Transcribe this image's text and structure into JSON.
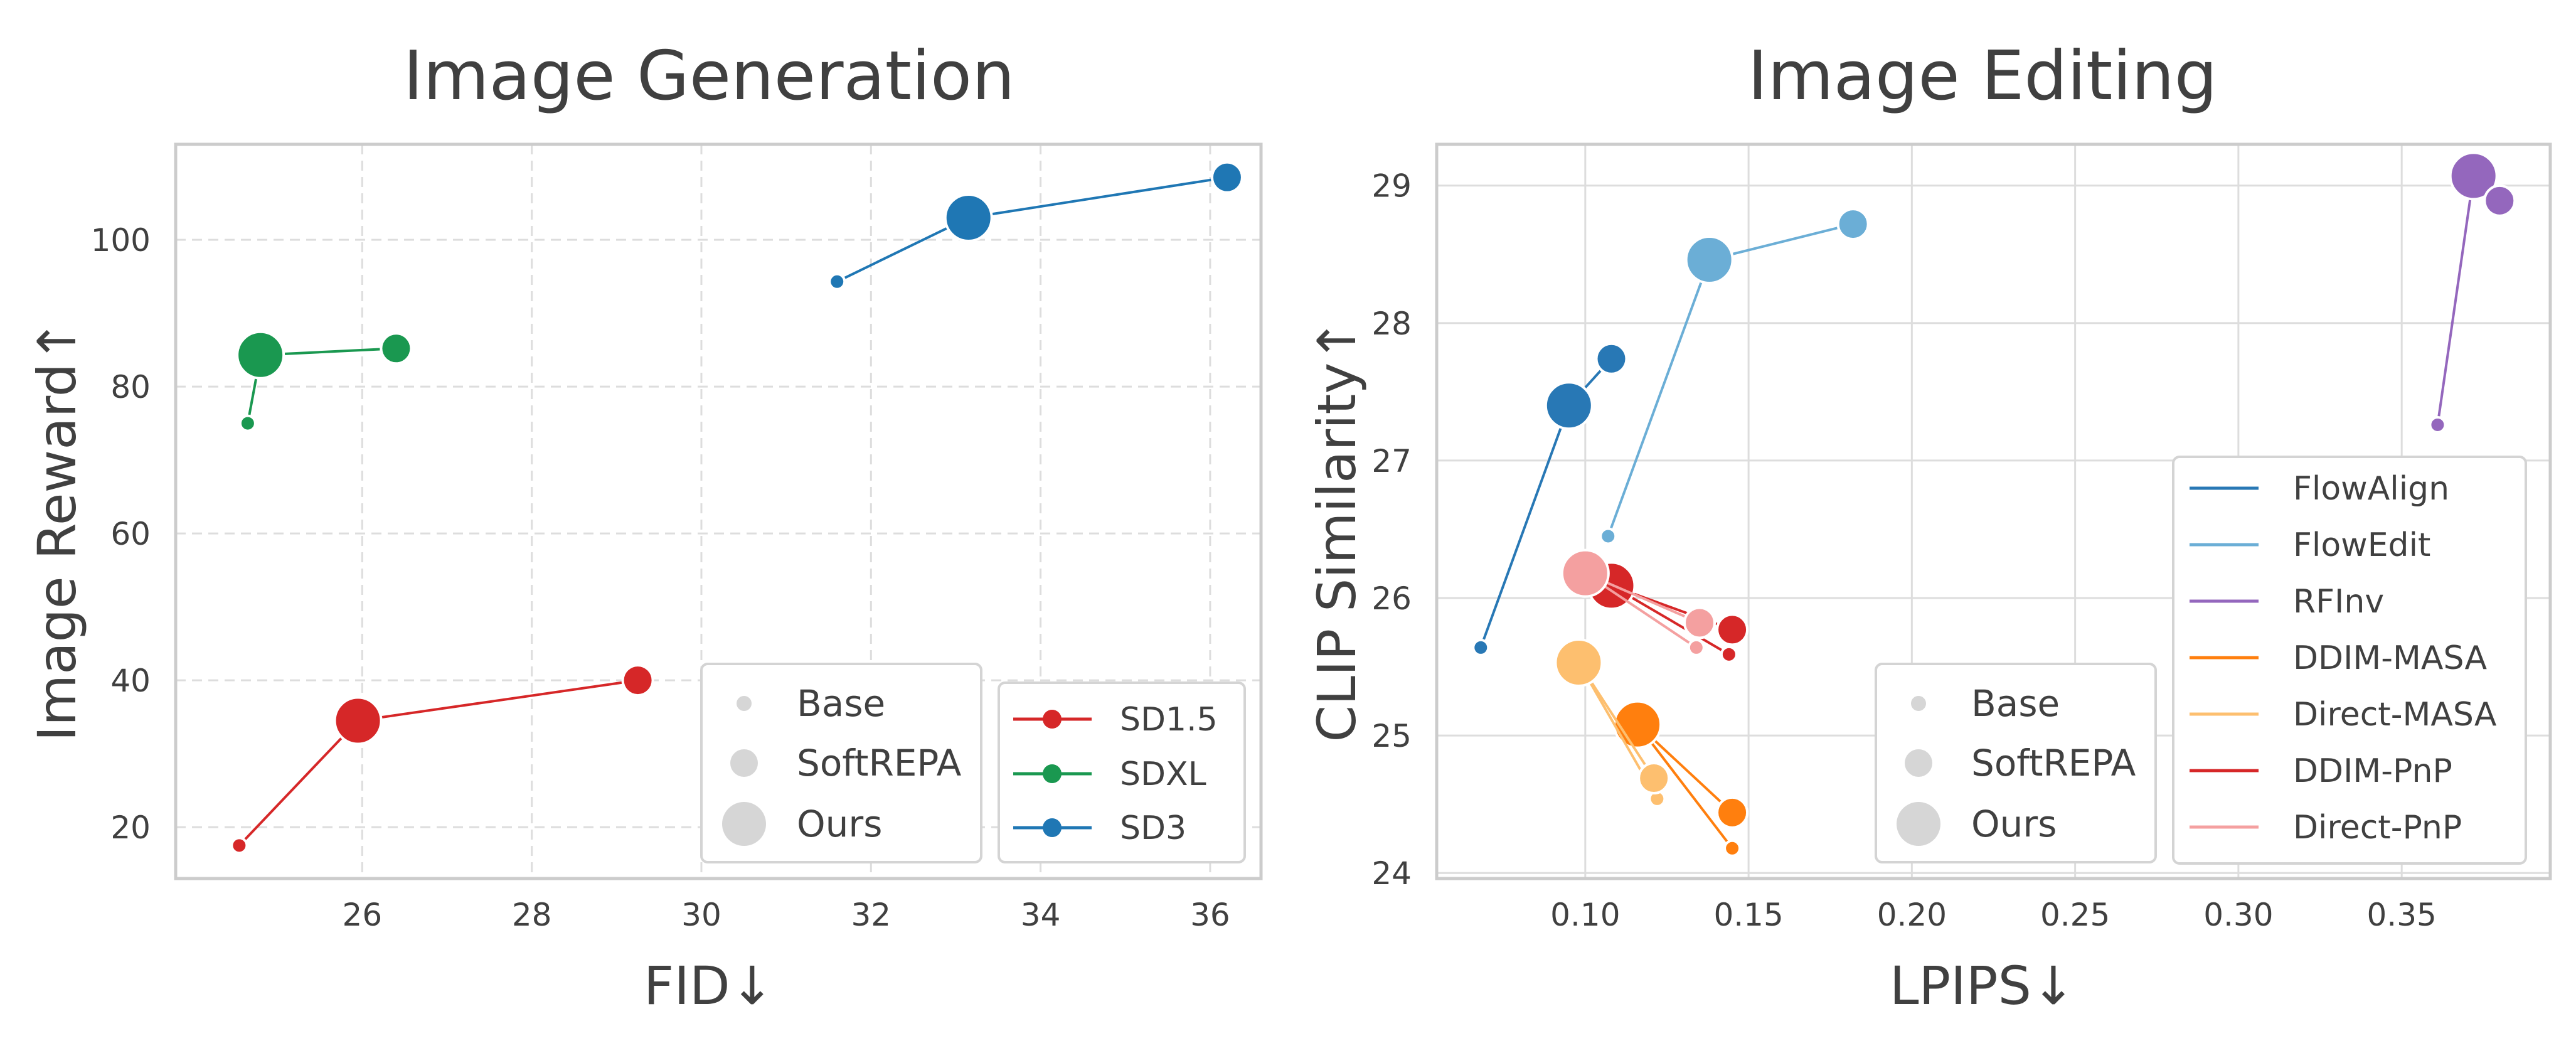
{
  "chart_data": [
    {
      "type": "scatter",
      "title": "Image Generation",
      "xlabel": "FID↓",
      "ylabel": "Image Reward↑",
      "xlim": [
        23.8,
        36.6
      ],
      "ylim": [
        13,
        113
      ],
      "xticks": [
        26,
        28,
        30,
        32,
        34,
        36
      ],
      "yticks": [
        20,
        40,
        60,
        80,
        100
      ],
      "grid": true,
      "size_legend": [
        "Base",
        "SoftREPA",
        "Ours"
      ],
      "size_legend_placement": "bottom-center",
      "series_legend_placement": "bottom-right",
      "series": [
        {
          "name": "SD1.5",
          "color": "#d62728",
          "points": [
            {
              "x": 24.55,
              "y": 17.5,
              "size": "Base"
            },
            {
              "x": 25.95,
              "y": 34.5,
              "size": "Ours"
            },
            {
              "x": 29.25,
              "y": 40.0,
              "size": "SoftREPA"
            }
          ]
        },
        {
          "name": "SDXL",
          "color": "#1a9850",
          "points": [
            {
              "x": 24.65,
              "y": 75.0,
              "size": "Base"
            },
            {
              "x": 24.8,
              "y": 84.3,
              "size": "Ours"
            },
            {
              "x": 26.4,
              "y": 85.2,
              "size": "SoftREPA"
            }
          ]
        },
        {
          "name": "SD3",
          "color": "#1f77b4",
          "points": [
            {
              "x": 31.6,
              "y": 94.3,
              "size": "Base"
            },
            {
              "x": 33.15,
              "y": 103.0,
              "size": "Ours"
            },
            {
              "x": 36.2,
              "y": 108.5,
              "size": "SoftREPA"
            }
          ]
        }
      ]
    },
    {
      "type": "scatter",
      "title": "Image Editing",
      "xlabel": "LPIPS↓",
      "ylabel": "CLIP Similarity↑",
      "xlim": [
        0.0545,
        0.3955
      ],
      "ylim": [
        23.96,
        29.3
      ],
      "xticks": [
        0.1,
        0.15,
        0.2,
        0.25,
        0.3,
        0.35
      ],
      "xtick_labels": [
        "0.10",
        "0.15",
        "0.20",
        "0.25",
        "0.30",
        "0.35"
      ],
      "yticks": [
        24,
        25,
        26,
        27,
        28,
        29
      ],
      "grid": true,
      "size_legend": [
        "Base",
        "SoftREPA",
        "Ours"
      ],
      "size_legend_placement": "bottom-center",
      "series_legend_placement": "right",
      "series": [
        {
          "name": "FlowAlign",
          "color": "#2878b5",
          "points": [
            {
              "x": 0.068,
              "y": 25.64,
              "size": "Base"
            },
            {
              "x": 0.095,
              "y": 27.4,
              "size": "Ours"
            },
            {
              "x": 0.108,
              "y": 27.74,
              "size": "SoftREPA"
            }
          ]
        },
        {
          "name": "FlowEdit",
          "color": "#6baed6",
          "points": [
            {
              "x": 0.107,
              "y": 26.45,
              "size": "Base"
            },
            {
              "x": 0.138,
              "y": 28.46,
              "size": "Ours"
            },
            {
              "x": 0.182,
              "y": 28.72,
              "size": "SoftREPA"
            }
          ]
        },
        {
          "name": "RFInv",
          "color": "#9467bd",
          "points": [
            {
              "x": 0.361,
              "y": 27.26,
              "size": "Base"
            },
            {
              "x": 0.372,
              "y": 29.07,
              "size": "Ours"
            },
            {
              "x": 0.38,
              "y": 28.89,
              "size": "SoftREPA"
            }
          ]
        },
        {
          "name": "DDIM-MASA",
          "color": "#ff7f0e",
          "points": [
            {
              "x": 0.145,
              "y": 24.18,
              "size": "Base"
            },
            {
              "x": 0.116,
              "y": 25.08,
              "size": "Ours"
            },
            {
              "x": 0.145,
              "y": 24.44,
              "size": "SoftREPA"
            }
          ]
        },
        {
          "name": "Direct-MASA",
          "color": "#fdbf6f",
          "points": [
            {
              "x": 0.122,
              "y": 24.54,
              "size": "Base"
            },
            {
              "x": 0.098,
              "y": 25.53,
              "size": "Ours"
            },
            {
              "x": 0.121,
              "y": 24.69,
              "size": "SoftREPA"
            }
          ]
        },
        {
          "name": "DDIM-PnP",
          "color": "#d62728",
          "points": [
            {
              "x": 0.144,
              "y": 25.59,
              "size": "Base"
            },
            {
              "x": 0.108,
              "y": 26.09,
              "size": "Ours"
            },
            {
              "x": 0.145,
              "y": 25.77,
              "size": "SoftREPA"
            }
          ]
        },
        {
          "name": "Direct-PnP",
          "color": "#f4a0a0",
          "points": [
            {
              "x": 0.134,
              "y": 25.64,
              "size": "Base"
            },
            {
              "x": 0.1,
              "y": 26.18,
              "size": "Ours"
            },
            {
              "x": 0.135,
              "y": 25.82,
              "size": "SoftREPA"
            }
          ]
        }
      ]
    }
  ]
}
